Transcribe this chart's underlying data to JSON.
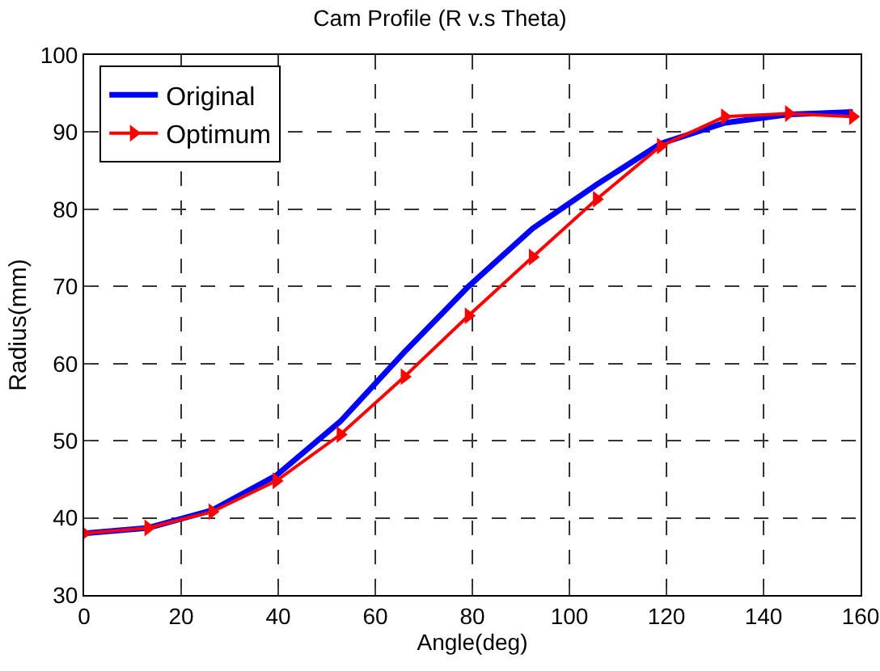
{
  "chart_data": {
    "type": "line",
    "title": "Cam Profile (R v.s Theta)",
    "xlabel": "Angle(deg)",
    "ylabel": "Radius(mm)",
    "x": [
      0,
      13.2,
      26.4,
      39.6,
      52.8,
      66,
      79.2,
      92.4,
      105.6,
      118.8,
      132,
      145.2,
      158.4
    ],
    "series": [
      {
        "name": "Original",
        "color": "#0000ff",
        "marker": "none",
        "values": [
          38,
          38.7,
          41,
          45.5,
          52.5,
          61.5,
          70,
          77.5,
          83.2,
          88.5,
          91.2,
          92.3,
          92.6
        ]
      },
      {
        "name": "Optimum",
        "color": "#ff0000",
        "marker": "triangle",
        "values": [
          38,
          38.7,
          40.8,
          44.8,
          50.8,
          58.3,
          66.2,
          73.8,
          81.3,
          88.2,
          92,
          92.4,
          92
        ]
      }
    ],
    "xlim": [
      0,
      160
    ],
    "xticks": [
      0,
      20,
      40,
      60,
      80,
      100,
      120,
      140,
      160
    ],
    "ylim": [
      30,
      100
    ],
    "yticks": [
      30,
      40,
      50,
      60,
      70,
      80,
      90,
      100
    ],
    "grid": true,
    "legend": "top left",
    "line_style": "solid"
  }
}
